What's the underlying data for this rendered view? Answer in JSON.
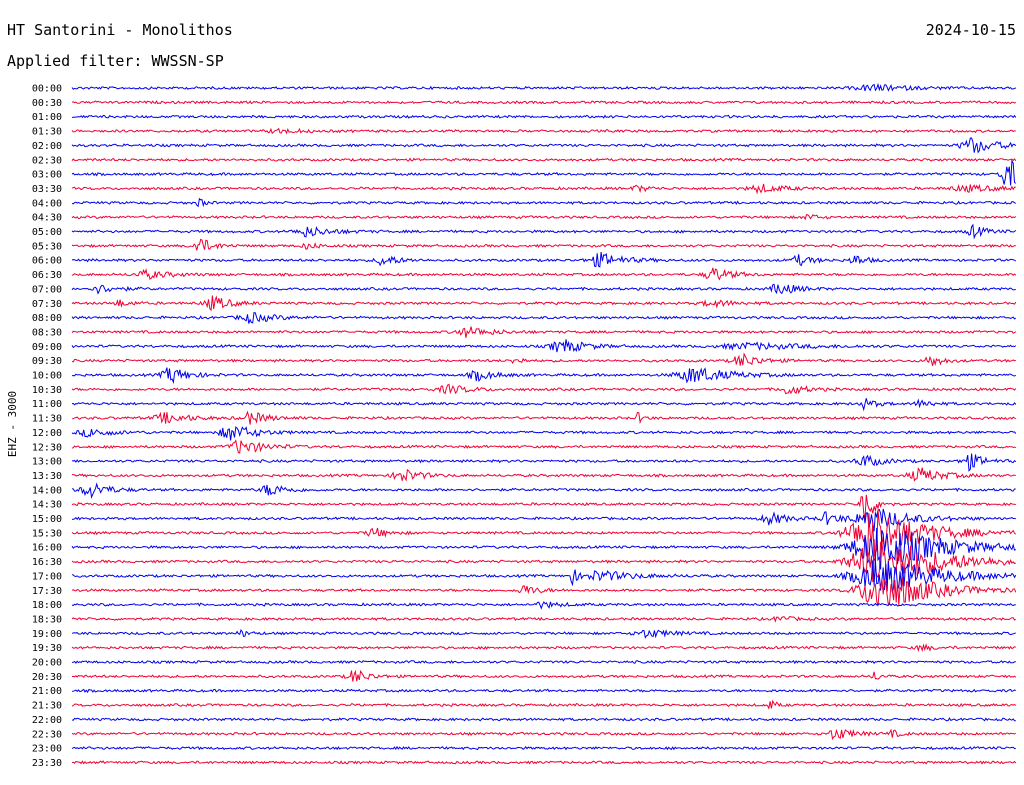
{
  "chart_data": {
    "type": "line",
    "title": "HT Santorini - Monolithos",
    "date": "2024-10-15",
    "subtitle": "Applied filter: WWSSN-SP",
    "ylabel": "EHZ - 3000",
    "colors": {
      "odd": "#0000ee",
      "even": "#ee0033"
    },
    "traces": [
      {
        "label": "00:00",
        "events": [
          {
            "pos": 0.85,
            "amp": 3,
            "width": 0.03
          }
        ]
      },
      {
        "label": "00:30",
        "events": []
      },
      {
        "label": "01:00",
        "events": []
      },
      {
        "label": "01:30",
        "events": [
          {
            "pos": 0.22,
            "amp": 2,
            "width": 0.02
          }
        ]
      },
      {
        "label": "02:00",
        "events": [
          {
            "pos": 0.955,
            "amp": 8,
            "width": 0.02
          }
        ]
      },
      {
        "label": "02:30",
        "events": []
      },
      {
        "label": "03:00",
        "events": [
          {
            "pos": 0.992,
            "amp": 16,
            "width": 0.012
          }
        ]
      },
      {
        "label": "03:30",
        "events": [
          {
            "pos": 0.6,
            "amp": 3,
            "width": 0.01
          },
          {
            "pos": 0.73,
            "amp": 4,
            "width": 0.02
          },
          {
            "pos": 0.95,
            "amp": 3,
            "width": 0.03
          }
        ]
      },
      {
        "label": "04:00",
        "events": [
          {
            "pos": 0.135,
            "amp": 4,
            "width": 0.005
          }
        ]
      },
      {
        "label": "04:30",
        "events": [
          {
            "pos": 0.78,
            "amp": 3,
            "width": 0.008
          }
        ]
      },
      {
        "label": "05:00",
        "events": [
          {
            "pos": 0.25,
            "amp": 5,
            "width": 0.02
          },
          {
            "pos": 0.955,
            "amp": 6,
            "width": 0.01
          }
        ]
      },
      {
        "label": "05:30",
        "events": [
          {
            "pos": 0.135,
            "amp": 8,
            "width": 0.012
          },
          {
            "pos": 0.25,
            "amp": 3,
            "width": 0.01
          }
        ]
      },
      {
        "label": "06:00",
        "events": [
          {
            "pos": 0.33,
            "amp": 6,
            "width": 0.012
          },
          {
            "pos": 0.56,
            "amp": 7,
            "width": 0.02
          },
          {
            "pos": 0.77,
            "amp": 5,
            "width": 0.012
          },
          {
            "pos": 0.83,
            "amp": 5,
            "width": 0.01
          }
        ]
      },
      {
        "label": "06:30",
        "events": [
          {
            "pos": 0.08,
            "amp": 4,
            "width": 0.02
          },
          {
            "pos": 0.68,
            "amp": 7,
            "width": 0.015
          }
        ]
      },
      {
        "label": "07:00",
        "events": [
          {
            "pos": 0.03,
            "amp": 4,
            "width": 0.015
          },
          {
            "pos": 0.75,
            "amp": 6,
            "width": 0.015
          }
        ]
      },
      {
        "label": "07:30",
        "events": [
          {
            "pos": 0.05,
            "amp": 3,
            "width": 0.01
          },
          {
            "pos": 0.15,
            "amp": 7,
            "width": 0.015
          },
          {
            "pos": 0.68,
            "amp": 3,
            "width": 0.02
          }
        ]
      },
      {
        "label": "08:00",
        "events": [
          {
            "pos": 0.19,
            "amp": 5,
            "width": 0.02
          }
        ]
      },
      {
        "label": "08:30",
        "events": [
          {
            "pos": 0.42,
            "amp": 5,
            "width": 0.02
          }
        ]
      },
      {
        "label": "09:00",
        "events": [
          {
            "pos": 0.52,
            "amp": 7,
            "width": 0.02
          },
          {
            "pos": 0.72,
            "amp": 3,
            "width": 0.05
          }
        ]
      },
      {
        "label": "09:30",
        "events": [
          {
            "pos": 0.47,
            "amp": 6,
            "width": 0.005
          },
          {
            "pos": 0.71,
            "amp": 7,
            "width": 0.015
          },
          {
            "pos": 0.91,
            "amp": 6,
            "width": 0.01
          }
        ]
      },
      {
        "label": "10:00",
        "events": [
          {
            "pos": 0.105,
            "amp": 8,
            "width": 0.015
          },
          {
            "pos": 0.43,
            "amp": 5,
            "width": 0.015
          },
          {
            "pos": 0.66,
            "amp": 8,
            "width": 0.03
          }
        ]
      },
      {
        "label": "10:30",
        "events": [
          {
            "pos": 0.4,
            "amp": 4,
            "width": 0.02
          },
          {
            "pos": 0.76,
            "amp": 5,
            "width": 0.015
          }
        ]
      },
      {
        "label": "11:00",
        "events": [
          {
            "pos": 0.84,
            "amp": 5,
            "width": 0.01
          },
          {
            "pos": 0.9,
            "amp": 4,
            "width": 0.01
          }
        ]
      },
      {
        "label": "11:30",
        "events": [
          {
            "pos": 0.1,
            "amp": 5,
            "width": 0.02
          },
          {
            "pos": 0.19,
            "amp": 6,
            "width": 0.015
          },
          {
            "pos": 0.6,
            "amp": 5,
            "width": 0.005
          }
        ]
      },
      {
        "label": "12:00",
        "events": [
          {
            "pos": 0.02,
            "amp": 4,
            "width": 0.02
          },
          {
            "pos": 0.17,
            "amp": 8,
            "width": 0.02
          }
        ]
      },
      {
        "label": "12:30",
        "events": [
          {
            "pos": 0.18,
            "amp": 7,
            "width": 0.02
          }
        ]
      },
      {
        "label": "13:00",
        "events": [
          {
            "pos": 0.84,
            "amp": 6,
            "width": 0.015
          },
          {
            "pos": 0.95,
            "amp": 9,
            "width": 0.012
          }
        ]
      },
      {
        "label": "13:30",
        "events": [
          {
            "pos": 0.35,
            "amp": 7,
            "width": 0.015
          },
          {
            "pos": 0.9,
            "amp": 7,
            "width": 0.02
          }
        ]
      },
      {
        "label": "14:00",
        "events": [
          {
            "pos": 0.02,
            "amp": 8,
            "width": 0.015
          },
          {
            "pos": 0.21,
            "amp": 6,
            "width": 0.015
          }
        ]
      },
      {
        "label": "14:30",
        "events": [
          {
            "pos": 0.84,
            "amp": 22,
            "width": 0.008
          }
        ]
      },
      {
        "label": "15:00",
        "events": [
          {
            "pos": 0.74,
            "amp": 6,
            "width": 0.015
          },
          {
            "pos": 0.8,
            "amp": 6,
            "width": 0.012
          },
          {
            "pos": 0.85,
            "amp": 12,
            "width": 0.03
          }
        ]
      },
      {
        "label": "15:30",
        "events": [
          {
            "pos": 0.32,
            "amp": 5,
            "width": 0.012
          },
          {
            "pos": 0.85,
            "amp": 28,
            "width": 0.04
          }
        ]
      },
      {
        "label": "16:00",
        "events": [
          {
            "pos": 0.86,
            "amp": 24,
            "width": 0.05
          }
        ]
      },
      {
        "label": "16:30",
        "events": [
          {
            "pos": 0.86,
            "amp": 26,
            "width": 0.05
          }
        ]
      },
      {
        "label": "17:00",
        "events": [
          {
            "pos": 0.53,
            "amp": 12,
            "width": 0.003
          },
          {
            "pos": 0.56,
            "amp": 5,
            "width": 0.03
          },
          {
            "pos": 0.86,
            "amp": 18,
            "width": 0.05
          }
        ]
      },
      {
        "label": "17:30",
        "events": [
          {
            "pos": 0.48,
            "amp": 5,
            "width": 0.012
          },
          {
            "pos": 0.86,
            "amp": 22,
            "width": 0.04
          }
        ]
      },
      {
        "label": "18:00",
        "events": [
          {
            "pos": 0.5,
            "amp": 3,
            "width": 0.015
          }
        ]
      },
      {
        "label": "18:30",
        "events": [
          {
            "pos": 0.75,
            "amp": 3,
            "width": 0.01
          }
        ]
      },
      {
        "label": "19:00",
        "events": [
          {
            "pos": 0.18,
            "amp": 3,
            "width": 0.008
          },
          {
            "pos": 0.61,
            "amp": 4,
            "width": 0.02
          }
        ]
      },
      {
        "label": "19:30",
        "events": [
          {
            "pos": 0.9,
            "amp": 3,
            "width": 0.01
          }
        ]
      },
      {
        "label": "20:00",
        "events": []
      },
      {
        "label": "20:30",
        "events": [
          {
            "pos": 0.3,
            "amp": 7,
            "width": 0.012
          },
          {
            "pos": 0.85,
            "amp": 5,
            "width": 0.005
          }
        ]
      },
      {
        "label": "21:00",
        "events": []
      },
      {
        "label": "21:30",
        "events": [
          {
            "pos": 0.74,
            "amp": 5,
            "width": 0.005
          }
        ]
      },
      {
        "label": "22:00",
        "events": []
      },
      {
        "label": "22:30",
        "events": [
          {
            "pos": 0.81,
            "amp": 6,
            "width": 0.015
          },
          {
            "pos": 0.87,
            "amp": 3,
            "width": 0.008
          }
        ]
      },
      {
        "label": "23:00",
        "events": []
      },
      {
        "label": "23:30",
        "events": []
      }
    ]
  }
}
